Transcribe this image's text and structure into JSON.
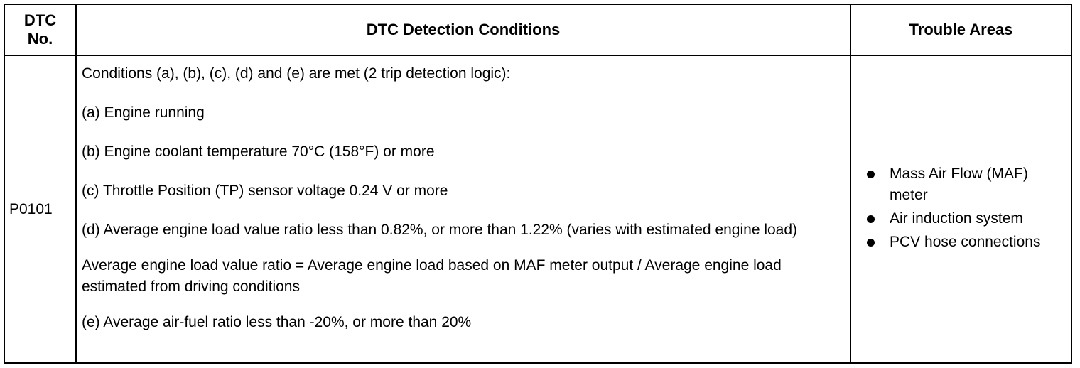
{
  "table": {
    "headers": {
      "dtc_no": "DTC\nNo.",
      "conditions": "DTC Detection Conditions",
      "trouble_areas": "Trouble Areas"
    },
    "row": {
      "dtc_no": "P0101",
      "conditions": [
        "Conditions (a), (b), (c), (d) and (e) are met (2 trip detection logic):",
        "(a) Engine running",
        "(b) Engine coolant temperature 70°C (158°F) or more",
        "(c) Throttle Position (TP) sensor voltage 0.24 V or more",
        "(d) Average engine load value ratio less than 0.82%, or more than 1.22% (varies with estimated engine load)",
        "Average engine load value ratio = Average engine load based on MAF meter output / Average engine load estimated from driving conditions",
        "(e) Average air-fuel ratio less than -20%, or more than 20%"
      ],
      "trouble_areas": [
        "Mass Air Flow (MAF) meter",
        "Air induction system",
        "PCV hose connections"
      ]
    }
  }
}
